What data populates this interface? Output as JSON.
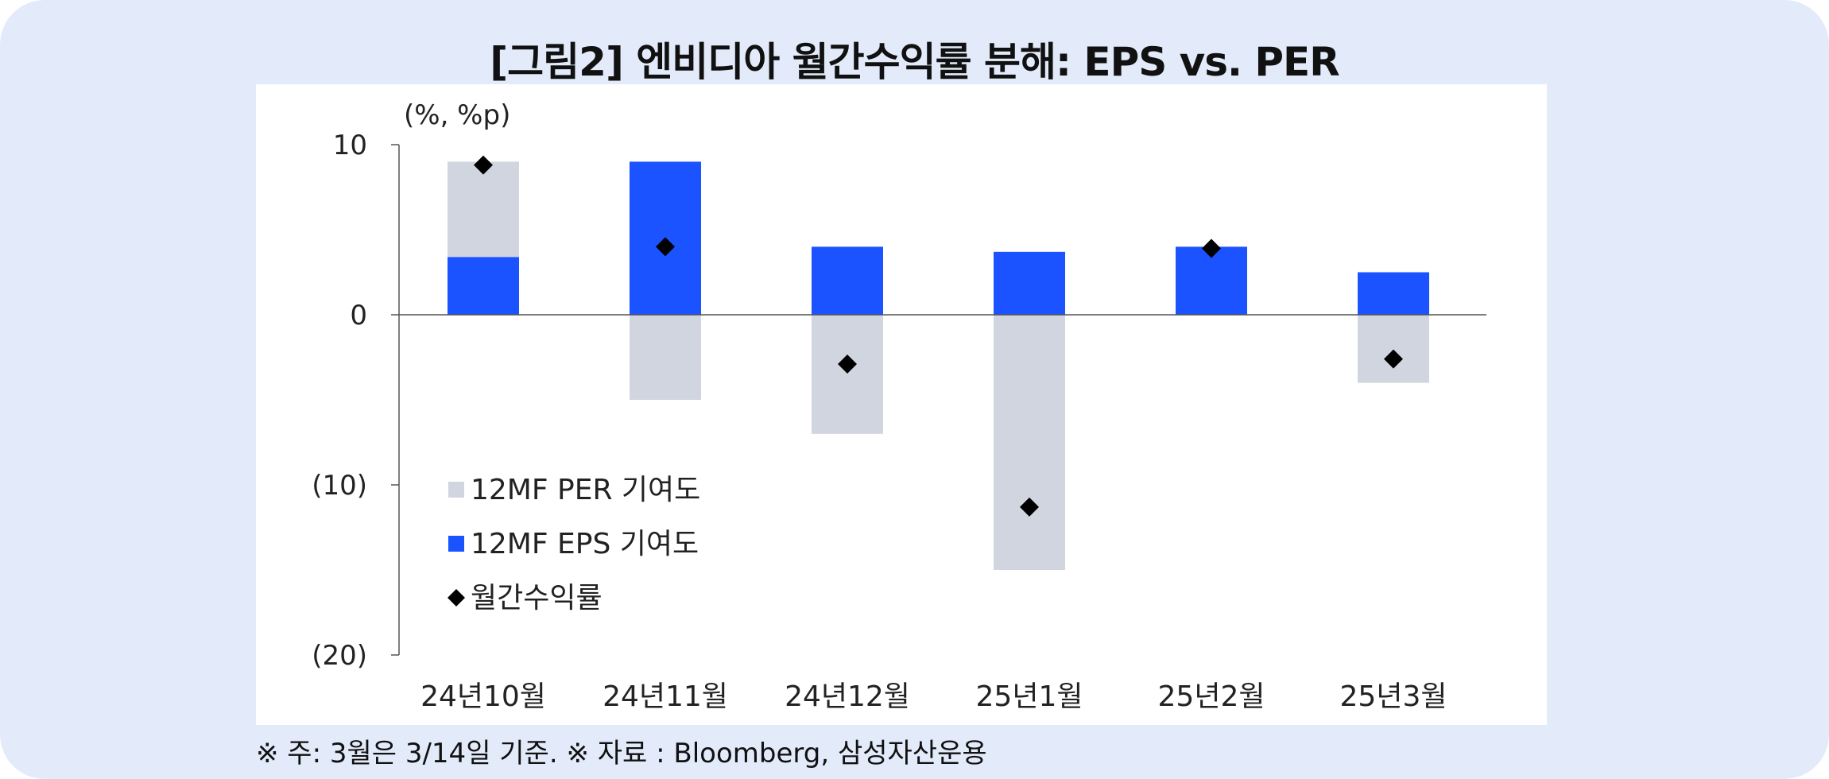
{
  "title": "[그림2] 엔비디아 월간수익률 분해: EPS vs. PER",
  "footnote": "※ 주: 3월은 3/14일 기준. ※ 자료 : Bloomberg, 삼성자산운용",
  "chart_data": {
    "type": "bar",
    "stacked": true,
    "unit_label": "(%, %p)",
    "categories": [
      "24년10월",
      "24년11월",
      "24년12월",
      "25년1월",
      "25년2월",
      "25년3월"
    ],
    "series": [
      {
        "name": "12MF PER 기여도",
        "type": "bar",
        "color": "#d1d5e0",
        "values": [
          5.6,
          -5.0,
          -7.0,
          -15.0,
          0.0,
          -4.0
        ]
      },
      {
        "name": "12MF EPS 기여도",
        "type": "bar",
        "color": "#1a53ff",
        "values": [
          3.4,
          9.0,
          4.0,
          3.7,
          4.0,
          2.5
        ]
      },
      {
        "name": "월간수익률",
        "type": "scatter",
        "marker": "diamond",
        "color": "#000000",
        "values": [
          8.8,
          4.0,
          -2.9,
          -11.3,
          3.9,
          -2.6
        ]
      }
    ],
    "ylim": [
      -20,
      10
    ],
    "yticks": [
      10,
      0,
      -10,
      -20
    ],
    "ytick_labels": [
      "10",
      "0",
      "(10)",
      "(20)"
    ],
    "legend_position": "lower-left"
  }
}
